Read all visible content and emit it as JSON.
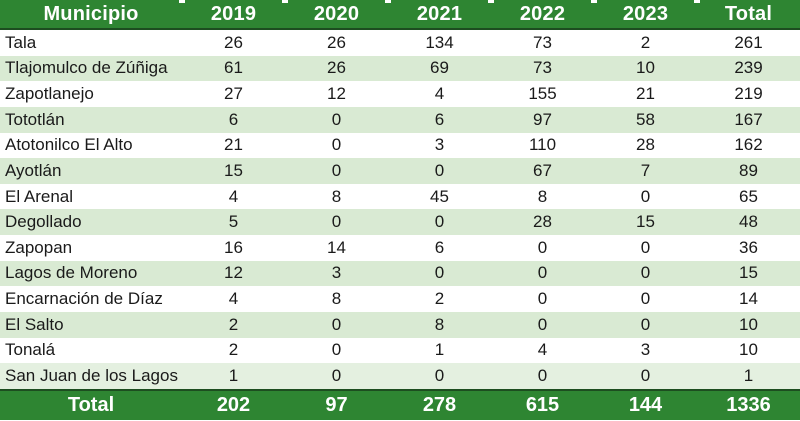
{
  "chart_data": {
    "type": "table",
    "columns": [
      "Municipio",
      "2019",
      "2020",
      "2021",
      "2022",
      "2023",
      "Total"
    ],
    "rows": [
      {
        "municipio": "Tala",
        "values": [
          26,
          26,
          134,
          73,
          2,
          261
        ]
      },
      {
        "municipio": "Tlajomulco de Zúñiga",
        "values": [
          61,
          26,
          69,
          73,
          10,
          239
        ]
      },
      {
        "municipio": "Zapotlanejo",
        "values": [
          27,
          12,
          4,
          155,
          21,
          219
        ]
      },
      {
        "municipio": "Tototlán",
        "values": [
          6,
          0,
          6,
          97,
          58,
          167
        ]
      },
      {
        "municipio": "Atotonilco El Alto",
        "values": [
          21,
          0,
          3,
          110,
          28,
          162
        ]
      },
      {
        "municipio": "Ayotlán",
        "values": [
          15,
          0,
          0,
          67,
          7,
          89
        ]
      },
      {
        "municipio": "El Arenal",
        "values": [
          4,
          8,
          45,
          8,
          0,
          65
        ]
      },
      {
        "municipio": "Degollado",
        "values": [
          5,
          0,
          0,
          28,
          15,
          48
        ]
      },
      {
        "municipio": "Zapopan",
        "values": [
          16,
          14,
          6,
          0,
          0,
          36
        ]
      },
      {
        "municipio": "Lagos de Moreno",
        "values": [
          12,
          3,
          0,
          0,
          0,
          15
        ]
      },
      {
        "municipio": "Encarnación de Díaz",
        "values": [
          4,
          8,
          2,
          0,
          0,
          14
        ]
      },
      {
        "municipio": "El Salto",
        "values": [
          2,
          0,
          8,
          0,
          0,
          10
        ]
      },
      {
        "municipio": "Tonalá",
        "values": [
          2,
          0,
          1,
          4,
          3,
          10
        ]
      },
      {
        "municipio": "San Juan de los Lagos",
        "values": [
          1,
          0,
          0,
          0,
          0,
          1
        ]
      }
    ],
    "footer": {
      "label": "Total",
      "values": [
        202,
        97,
        278,
        615,
        144,
        1336
      ]
    }
  },
  "colors": {
    "header_bg": "#2e8532",
    "header_text": "#ffffff",
    "stripe_bg": "#d9ead3",
    "last_stripe_bg": "#e4f0e0",
    "divider": "#1d4d20",
    "body_text": "#1a1a1a"
  }
}
